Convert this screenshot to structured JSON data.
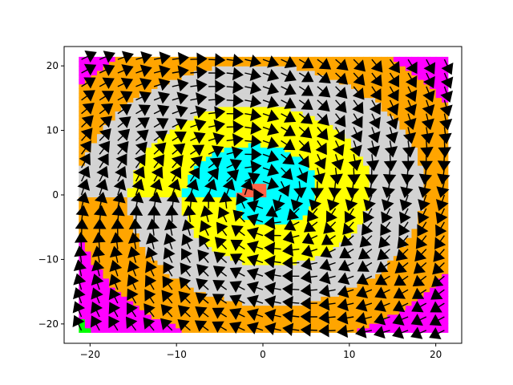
{
  "chart_data": {
    "type": "quiver",
    "title": "",
    "xlabel": "",
    "ylabel": "",
    "xlim": [
      -23,
      23
    ],
    "ylim": [
      -23,
      23
    ],
    "xticks": [
      -20,
      -10,
      0,
      10,
      20
    ],
    "yticks": [
      -20,
      -10,
      0,
      10,
      20
    ],
    "xtick_labels": [
      "−20",
      "−10",
      "0",
      "10",
      "20"
    ],
    "ytick_labels": [
      "−20",
      "−10",
      "0",
      "10",
      "20"
    ],
    "grid": false,
    "legend": "none",
    "arrow_color": "#000000",
    "grid_points": {
      "x_from": -21,
      "x_to": 21,
      "y_from": -21,
      "y_to": 21,
      "step": 2.1
    },
    "vector_field": "spiral: arrows rotate clockwise about the origin with an inward component",
    "region_colors": [
      "#ffa500",
      "#d3d3d3",
      "#ffff00",
      "#00ffff",
      "#ff6347",
      "#00ff00",
      "#ff00ff"
    ],
    "region_color_names": [
      "orange",
      "lightgray",
      "yellow",
      "cyan",
      "tomato",
      "lime",
      "magenta"
    ]
  }
}
